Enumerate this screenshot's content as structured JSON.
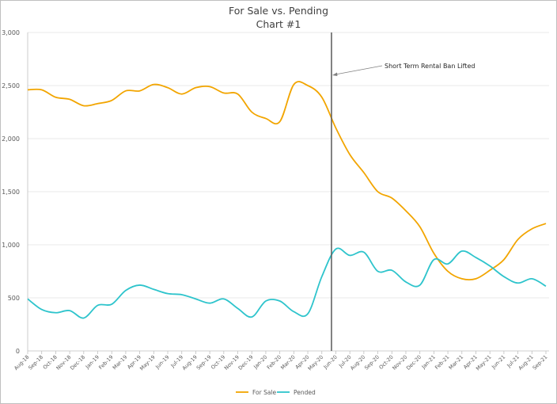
{
  "chart_data": {
    "type": "line",
    "title": "For Sale vs. Pending",
    "subtitle": "Chart #1",
    "xlabel": "",
    "ylabel": "",
    "ylim": [
      0,
      3000
    ],
    "yticks": [
      0,
      500,
      1000,
      1500,
      2000,
      2500,
      3000
    ],
    "ytick_labels": [
      "0",
      "500",
      "1,000",
      "1,500",
      "2,000",
      "2,500",
      "3,000"
    ],
    "grid": true,
    "legend": "bottom",
    "categories": [
      "Aug-18",
      "Sep-18",
      "Oct-18",
      "Nov-18",
      "Dec-18",
      "Jan-19",
      "Feb-19",
      "Mar-19",
      "Apr-19",
      "May-19",
      "Jun-19",
      "Jul-19",
      "Aug-19",
      "Sep-19",
      "Oct-19",
      "Nov-19",
      "Dec-19",
      "Jan-20",
      "Feb-20",
      "Mar-20",
      "Apr-20",
      "May-20",
      "Jun-20",
      "Jul-20",
      "Aug-20",
      "Sep-20",
      "Oct-20",
      "Nov-20",
      "Dec-20",
      "Jan-21",
      "Feb-21",
      "Mar-21",
      "Apr-21",
      "May-21",
      "Jun-21",
      "Jul-21",
      "Aug-21",
      "Sep-21"
    ],
    "series": [
      {
        "name": "For Sale",
        "color": "#F2A500",
        "values": [
          2460,
          2460,
          2390,
          2370,
          2310,
          2330,
          2360,
          2450,
          2450,
          2510,
          2480,
          2420,
          2480,
          2490,
          2430,
          2420,
          2250,
          2190,
          2160,
          2510,
          2500,
          2390,
          2100,
          1850,
          1680,
          1500,
          1440,
          1320,
          1170,
          920,
          750,
          680,
          680,
          760,
          860,
          1050,
          1150,
          1200
        ]
      },
      {
        "name": "Pended",
        "color": "#2EC4CC",
        "values": [
          490,
          390,
          360,
          380,
          310,
          430,
          440,
          570,
          620,
          580,
          540,
          530,
          490,
          450,
          490,
          400,
          320,
          470,
          470,
          370,
          350,
          700,
          960,
          900,
          930,
          750,
          760,
          650,
          620,
          860,
          820,
          940,
          880,
          800,
          700,
          640,
          680,
          610
        ]
      }
    ],
    "annotation": {
      "text": "Short Term Rental Ban Lifted",
      "category": "Jun-20"
    }
  }
}
